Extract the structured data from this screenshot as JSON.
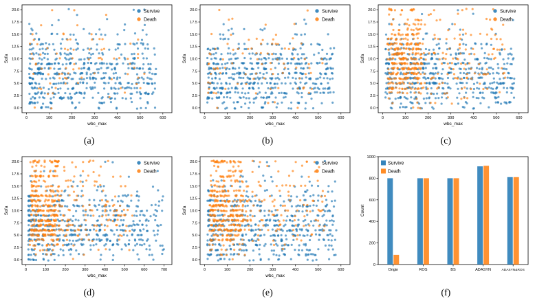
{
  "figure": {
    "captions": [
      "(a)",
      "(b)",
      "(c)",
      "(d)",
      "(e)",
      "(f)"
    ]
  },
  "colors": {
    "survive": "#1f77b4",
    "death": "#ff7f0e",
    "point_opacity": 0.65
  },
  "chart_data": [
    {
      "id": "a",
      "type": "scatter",
      "xlabel": "wbc_max",
      "ylabel": "Sofa",
      "xlim": [
        -20,
        640
      ],
      "ylim": [
        -1,
        21
      ],
      "xticks": [
        0,
        100,
        200,
        300,
        400,
        500,
        600
      ],
      "yticks": [
        0,
        2.5,
        5,
        7.5,
        10,
        12.5,
        15,
        17.5,
        20
      ],
      "legend": [
        "Survive",
        "Death"
      ],
      "legend_pos": "upper right",
      "series": [
        {
          "name": "Survive",
          "color": "#1f77b4",
          "n": 540,
          "seed": 11,
          "x": {
            "min": 12,
            "max": 570,
            "skew": 1.3
          },
          "y_weights": [
            3,
            4,
            5,
            6,
            7,
            8,
            8,
            8,
            7.5,
            7,
            6,
            5,
            4,
            3,
            2,
            1.5,
            1,
            0.5,
            0.25,
            0.1,
            0.3
          ]
        },
        {
          "name": "Death",
          "color": "#ff7f0e",
          "n": 80,
          "seed": 12,
          "x": {
            "min": 15,
            "max": 520,
            "skew": 1.2
          },
          "y_weights": [
            0.2,
            0.3,
            0.5,
            0.8,
            1,
            1.2,
            1.5,
            1.8,
            2,
            2,
            2,
            1.8,
            1.6,
            1.5,
            1.2,
            1,
            1,
            0.8,
            0.6,
            0.5,
            1.2
          ]
        }
      ]
    },
    {
      "id": "b",
      "type": "scatter",
      "xlabel": "wbc_max",
      "ylabel": "Sofa",
      "xlim": [
        -20,
        640
      ],
      "ylim": [
        -1,
        21
      ],
      "xticks": [
        0,
        100,
        200,
        300,
        400,
        500,
        600
      ],
      "yticks": [
        0,
        2.5,
        5,
        7.5,
        10,
        12.5,
        15,
        17.5,
        20
      ],
      "legend": [
        "Survive",
        "Death"
      ],
      "legend_pos": "upper right",
      "series": [
        {
          "name": "Survive",
          "color": "#1f77b4",
          "n": 540,
          "seed": 21,
          "x": {
            "min": 12,
            "max": 570,
            "skew": 1.3
          },
          "y_weights": [
            3,
            4,
            5,
            6,
            7,
            8,
            8,
            8,
            7.5,
            7,
            6,
            5,
            4,
            3,
            2,
            1.5,
            1,
            0.5,
            0.25,
            0.1,
            0.3
          ]
        },
        {
          "name": "Death",
          "color": "#ff7f0e",
          "n": 90,
          "seed": 22,
          "x": {
            "min": 15,
            "max": 520,
            "skew": 1.2
          },
          "y_weights": [
            0.2,
            0.3,
            0.5,
            0.8,
            1,
            1.2,
            1.5,
            1.8,
            2,
            2,
            2,
            1.8,
            1.6,
            1.5,
            1.2,
            1,
            1,
            0.8,
            0.6,
            0.5,
            1.2
          ]
        }
      ]
    },
    {
      "id": "c",
      "type": "scatter",
      "xlabel": "wbc_max",
      "ylabel": "Sofa",
      "xlim": [
        -20,
        640
      ],
      "ylim": [
        -1,
        21
      ],
      "xticks": [
        0,
        100,
        200,
        300,
        400,
        500,
        600
      ],
      "yticks": [
        0,
        2.5,
        5,
        7.5,
        10,
        12.5,
        15,
        17.5,
        20
      ],
      "legend": [
        "Survive",
        "Death"
      ],
      "legend_pos": "upper right",
      "series": [
        {
          "name": "Survive",
          "color": "#1f77b4",
          "n": 560,
          "seed": 31,
          "x": {
            "min": 12,
            "max": 580,
            "skew": 1.3
          },
          "y_weights": [
            3,
            4,
            5,
            6,
            7,
            8,
            8,
            8,
            7.5,
            7,
            6,
            5,
            4,
            3,
            2,
            1.5,
            1,
            0.5,
            0.25,
            0.1,
            0.3
          ]
        },
        {
          "name": "Death",
          "color": "#ff7f0e",
          "n": 470,
          "seed": 32,
          "x": {
            "min": 20,
            "max": 540,
            "skew": 1.3
          },
          "cluster": {
            "min": 25,
            "max": 170,
            "frac": 0.55
          },
          "y_weights": [
            0.1,
            0.2,
            0.4,
            0.8,
            1.2,
            1.8,
            2.2,
            2.5,
            2.5,
            2.5,
            2.3,
            2.2,
            2,
            1.8,
            1.6,
            1.4,
            1.2,
            1,
            0.8,
            0.6,
            1.5
          ]
        }
      ]
    },
    {
      "id": "d",
      "type": "scatter",
      "xlabel": "wbc_max",
      "ylabel": "Sofa",
      "xlim": [
        -20,
        740
      ],
      "ylim": [
        -1,
        21
      ],
      "xticks": [
        0,
        100,
        200,
        300,
        400,
        500,
        600,
        700
      ],
      "yticks": [
        0,
        2.5,
        5,
        7.5,
        10,
        12.5,
        15,
        17.5,
        20
      ],
      "legend": [
        "Survive",
        "Death"
      ],
      "legend_pos": "upper right",
      "series": [
        {
          "name": "Survive",
          "color": "#1f77b4",
          "n": 560,
          "seed": 41,
          "x": {
            "min": 12,
            "max": 700,
            "skew": 1.5
          },
          "y_weights": [
            3,
            4,
            5,
            6,
            7,
            8,
            8,
            8,
            7.5,
            7,
            6,
            5,
            4,
            3,
            2,
            1.5,
            1,
            0.5,
            0.25,
            0.1,
            0.3
          ]
        },
        {
          "name": "Death",
          "color": "#ff7f0e",
          "n": 480,
          "seed": 42,
          "x": {
            "min": 20,
            "max": 540,
            "skew": 1.3
          },
          "cluster": {
            "min": 25,
            "max": 170,
            "frac": 0.55
          },
          "y_weights": [
            0.1,
            0.2,
            0.4,
            0.8,
            1.2,
            1.8,
            2.2,
            2.5,
            2.5,
            2.5,
            2.3,
            2.2,
            2,
            1.8,
            1.6,
            1.4,
            1.2,
            1,
            0.8,
            0.6,
            1.5
          ]
        }
      ]
    },
    {
      "id": "e",
      "type": "scatter",
      "xlabel": "wbc_max",
      "ylabel": "Sofa",
      "xlim": [
        -20,
        640
      ],
      "ylim": [
        -1,
        21
      ],
      "xticks": [
        0,
        100,
        200,
        300,
        400,
        500,
        600
      ],
      "yticks": [
        0,
        2.5,
        5,
        7.5,
        10,
        12.5,
        15,
        17.5,
        20
      ],
      "legend": [
        "Survive",
        "Death"
      ],
      "legend_pos": "upper right",
      "series": [
        {
          "name": "Survive",
          "color": "#1f77b4",
          "n": 560,
          "seed": 51,
          "x": {
            "min": 12,
            "max": 580,
            "skew": 1.3
          },
          "y_weights": [
            3,
            4,
            5,
            6,
            7,
            8,
            8,
            8,
            7.5,
            7,
            6,
            5,
            4,
            3,
            2,
            1.5,
            1,
            0.5,
            0.25,
            0.1,
            0.3
          ]
        },
        {
          "name": "Death",
          "color": "#ff7f0e",
          "n": 480,
          "seed": 52,
          "x": {
            "min": 20,
            "max": 530,
            "skew": 1.3
          },
          "cluster": {
            "min": 25,
            "max": 170,
            "frac": 0.55
          },
          "y_weights": [
            0.1,
            0.2,
            0.4,
            0.8,
            1.2,
            1.8,
            2.2,
            2.5,
            2.5,
            2.5,
            2.3,
            2.2,
            2,
            1.8,
            1.6,
            1.4,
            1.2,
            1,
            0.8,
            0.6,
            1.5
          ]
        }
      ]
    },
    {
      "id": "f",
      "type": "bar",
      "xlabel": "",
      "ylabel": "Count",
      "categories": [
        "Origin",
        "ROS",
        "BS",
        "ADASYN",
        "ADASYN&ROS"
      ],
      "ylim": [
        0,
        1000
      ],
      "yticks": [
        0,
        200,
        400,
        600,
        800,
        1000
      ],
      "legend": [
        "Survive",
        "Death"
      ],
      "legend_pos": "upper left",
      "series": [
        {
          "name": "Survive",
          "color": "#1f77b4",
          "values": [
            800,
            800,
            800,
            910,
            810
          ]
        },
        {
          "name": "Death",
          "color": "#ff7f0e",
          "values": [
            90,
            800,
            800,
            915,
            810
          ]
        }
      ]
    }
  ]
}
